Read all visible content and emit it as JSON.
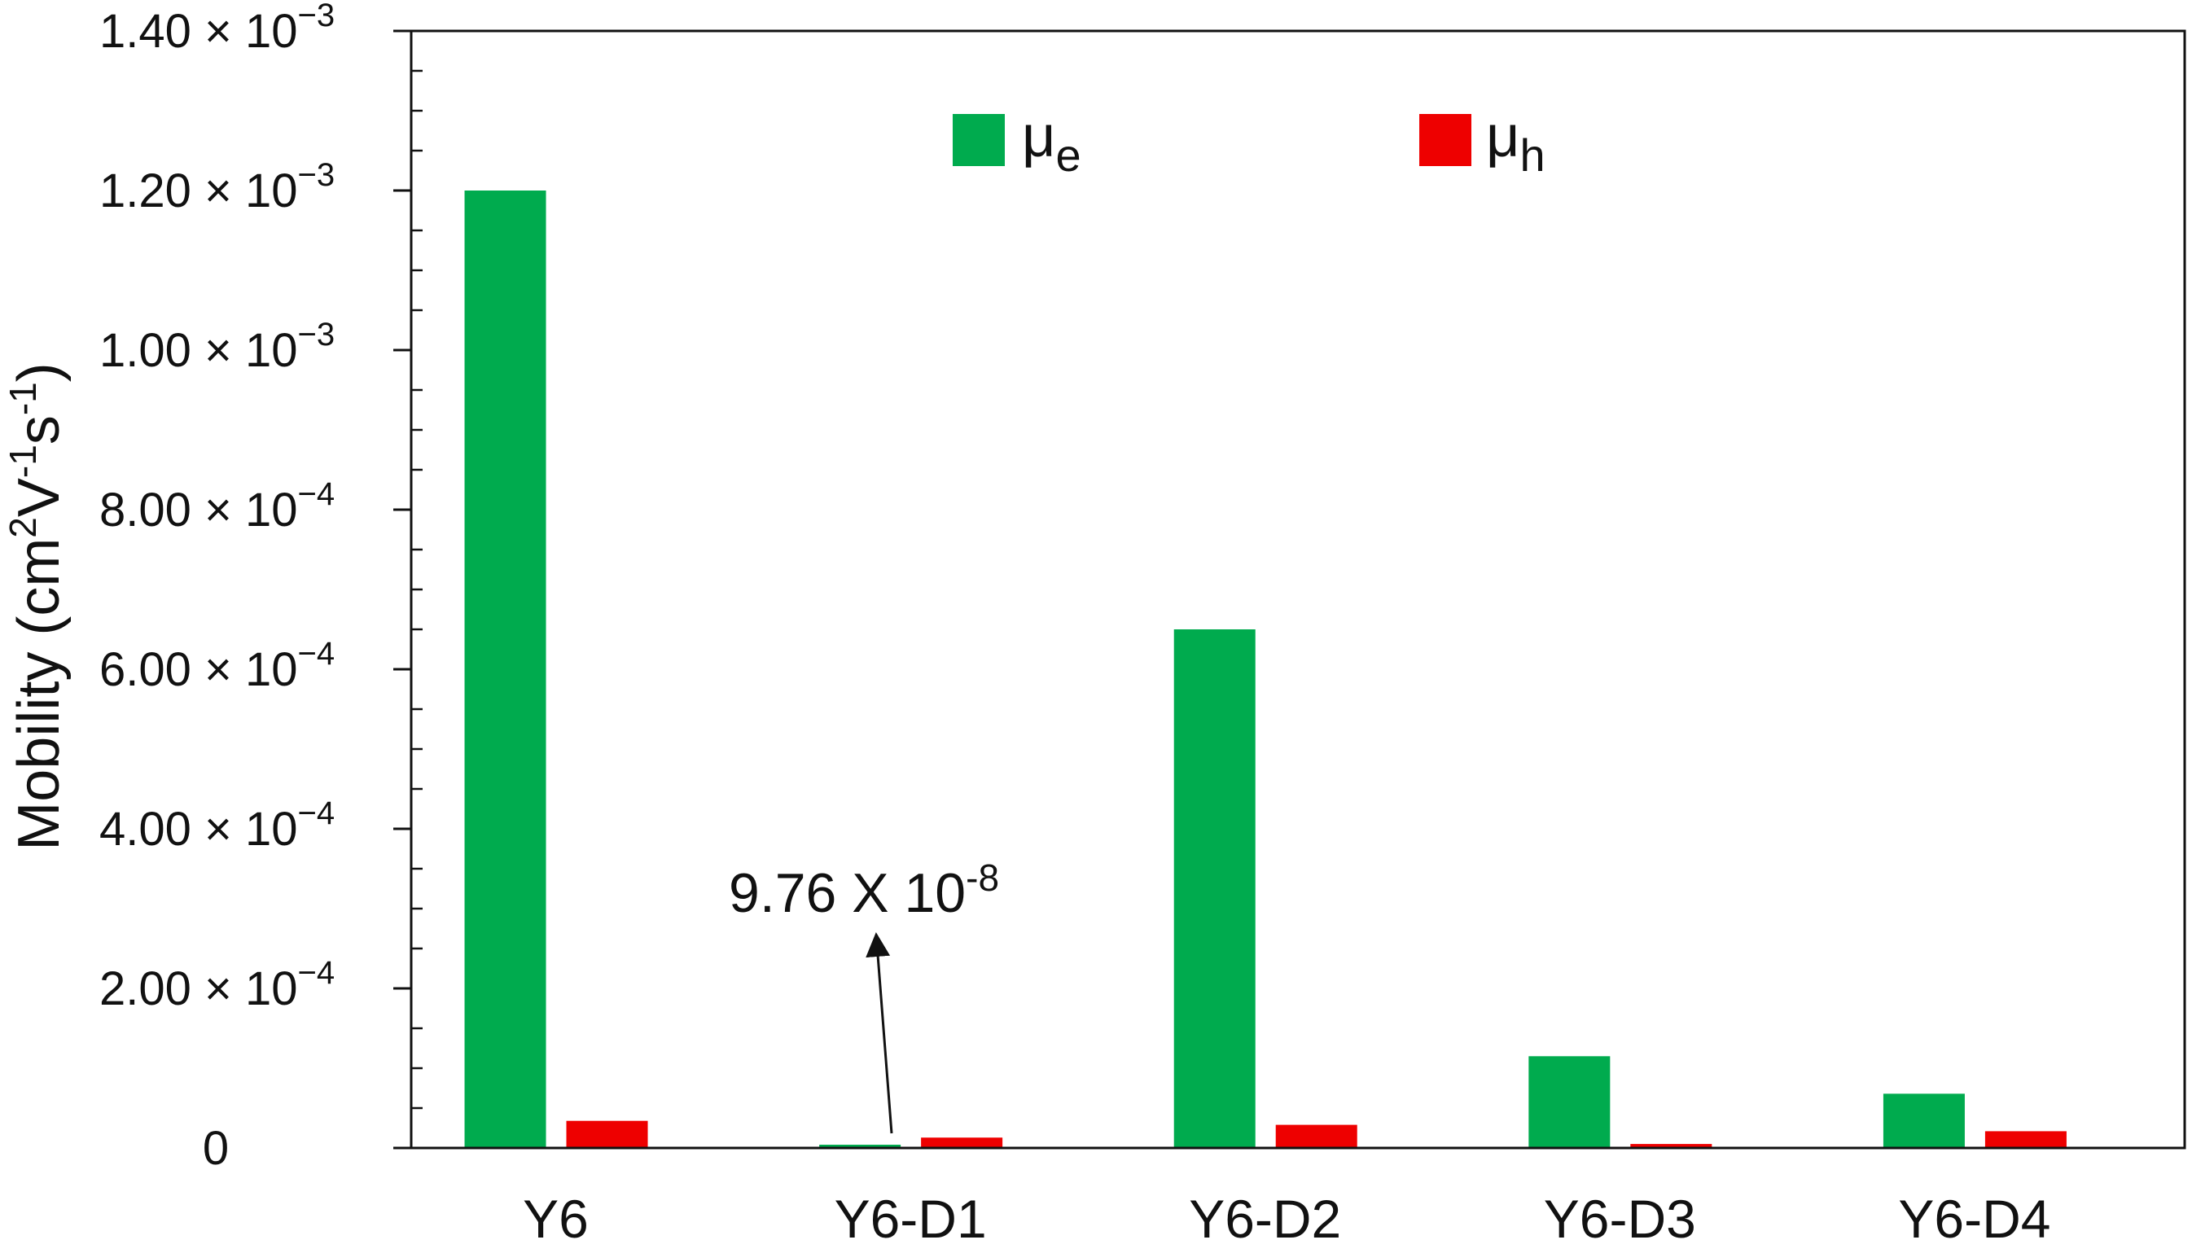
{
  "chart_data": {
    "type": "bar",
    "categories": [
      "Y6",
      "Y6-D1",
      "Y6-D2",
      "Y6-D3",
      "Y6-D4"
    ],
    "series": [
      {
        "name": "μe",
        "symbol": "μ",
        "subscript": "e",
        "color": "#00ab4e",
        "values": [
          0.0012,
          9.76e-08,
          0.00065,
          0.000115,
          6.8e-05
        ]
      },
      {
        "name": "μh",
        "symbol": "μ",
        "subscript": "h",
        "color": "#ee0000",
        "values": [
          3.4e-05,
          1.3e-05,
          2.9e-05,
          5e-06,
          2.1e-05
        ]
      }
    ],
    "ylim": [
      0,
      0.0014
    ],
    "yticks": [
      {
        "value": 0,
        "mant": "0",
        "exp": ""
      },
      {
        "value": 0.0002,
        "mant": "2.00",
        "exp": "−4"
      },
      {
        "value": 0.0004,
        "mant": "4.00",
        "exp": "−4"
      },
      {
        "value": 0.0006,
        "mant": "6.00",
        "exp": "−4"
      },
      {
        "value": 0.0008,
        "mant": "8.00",
        "exp": "−4"
      },
      {
        "value": 0.001,
        "mant": "1.00",
        "exp": "−3"
      },
      {
        "value": 0.0012,
        "mant": "1.20",
        "exp": "−3"
      },
      {
        "value": 0.0014,
        "mant": "1.40",
        "exp": "−3"
      }
    ],
    "ylabel": {
      "base": "Mobility (cm",
      "sup1": "2",
      "mid1": "V",
      "sup2": "-1",
      "mid2": "s",
      "sup3": "-1",
      "end": ")"
    },
    "xlabel": "",
    "annotation": {
      "mant": "9.76 X 10",
      "exp": "-8",
      "category_index": 1,
      "series_index": 0
    },
    "legend": {
      "placement": "top-center"
    },
    "grid": false
  }
}
